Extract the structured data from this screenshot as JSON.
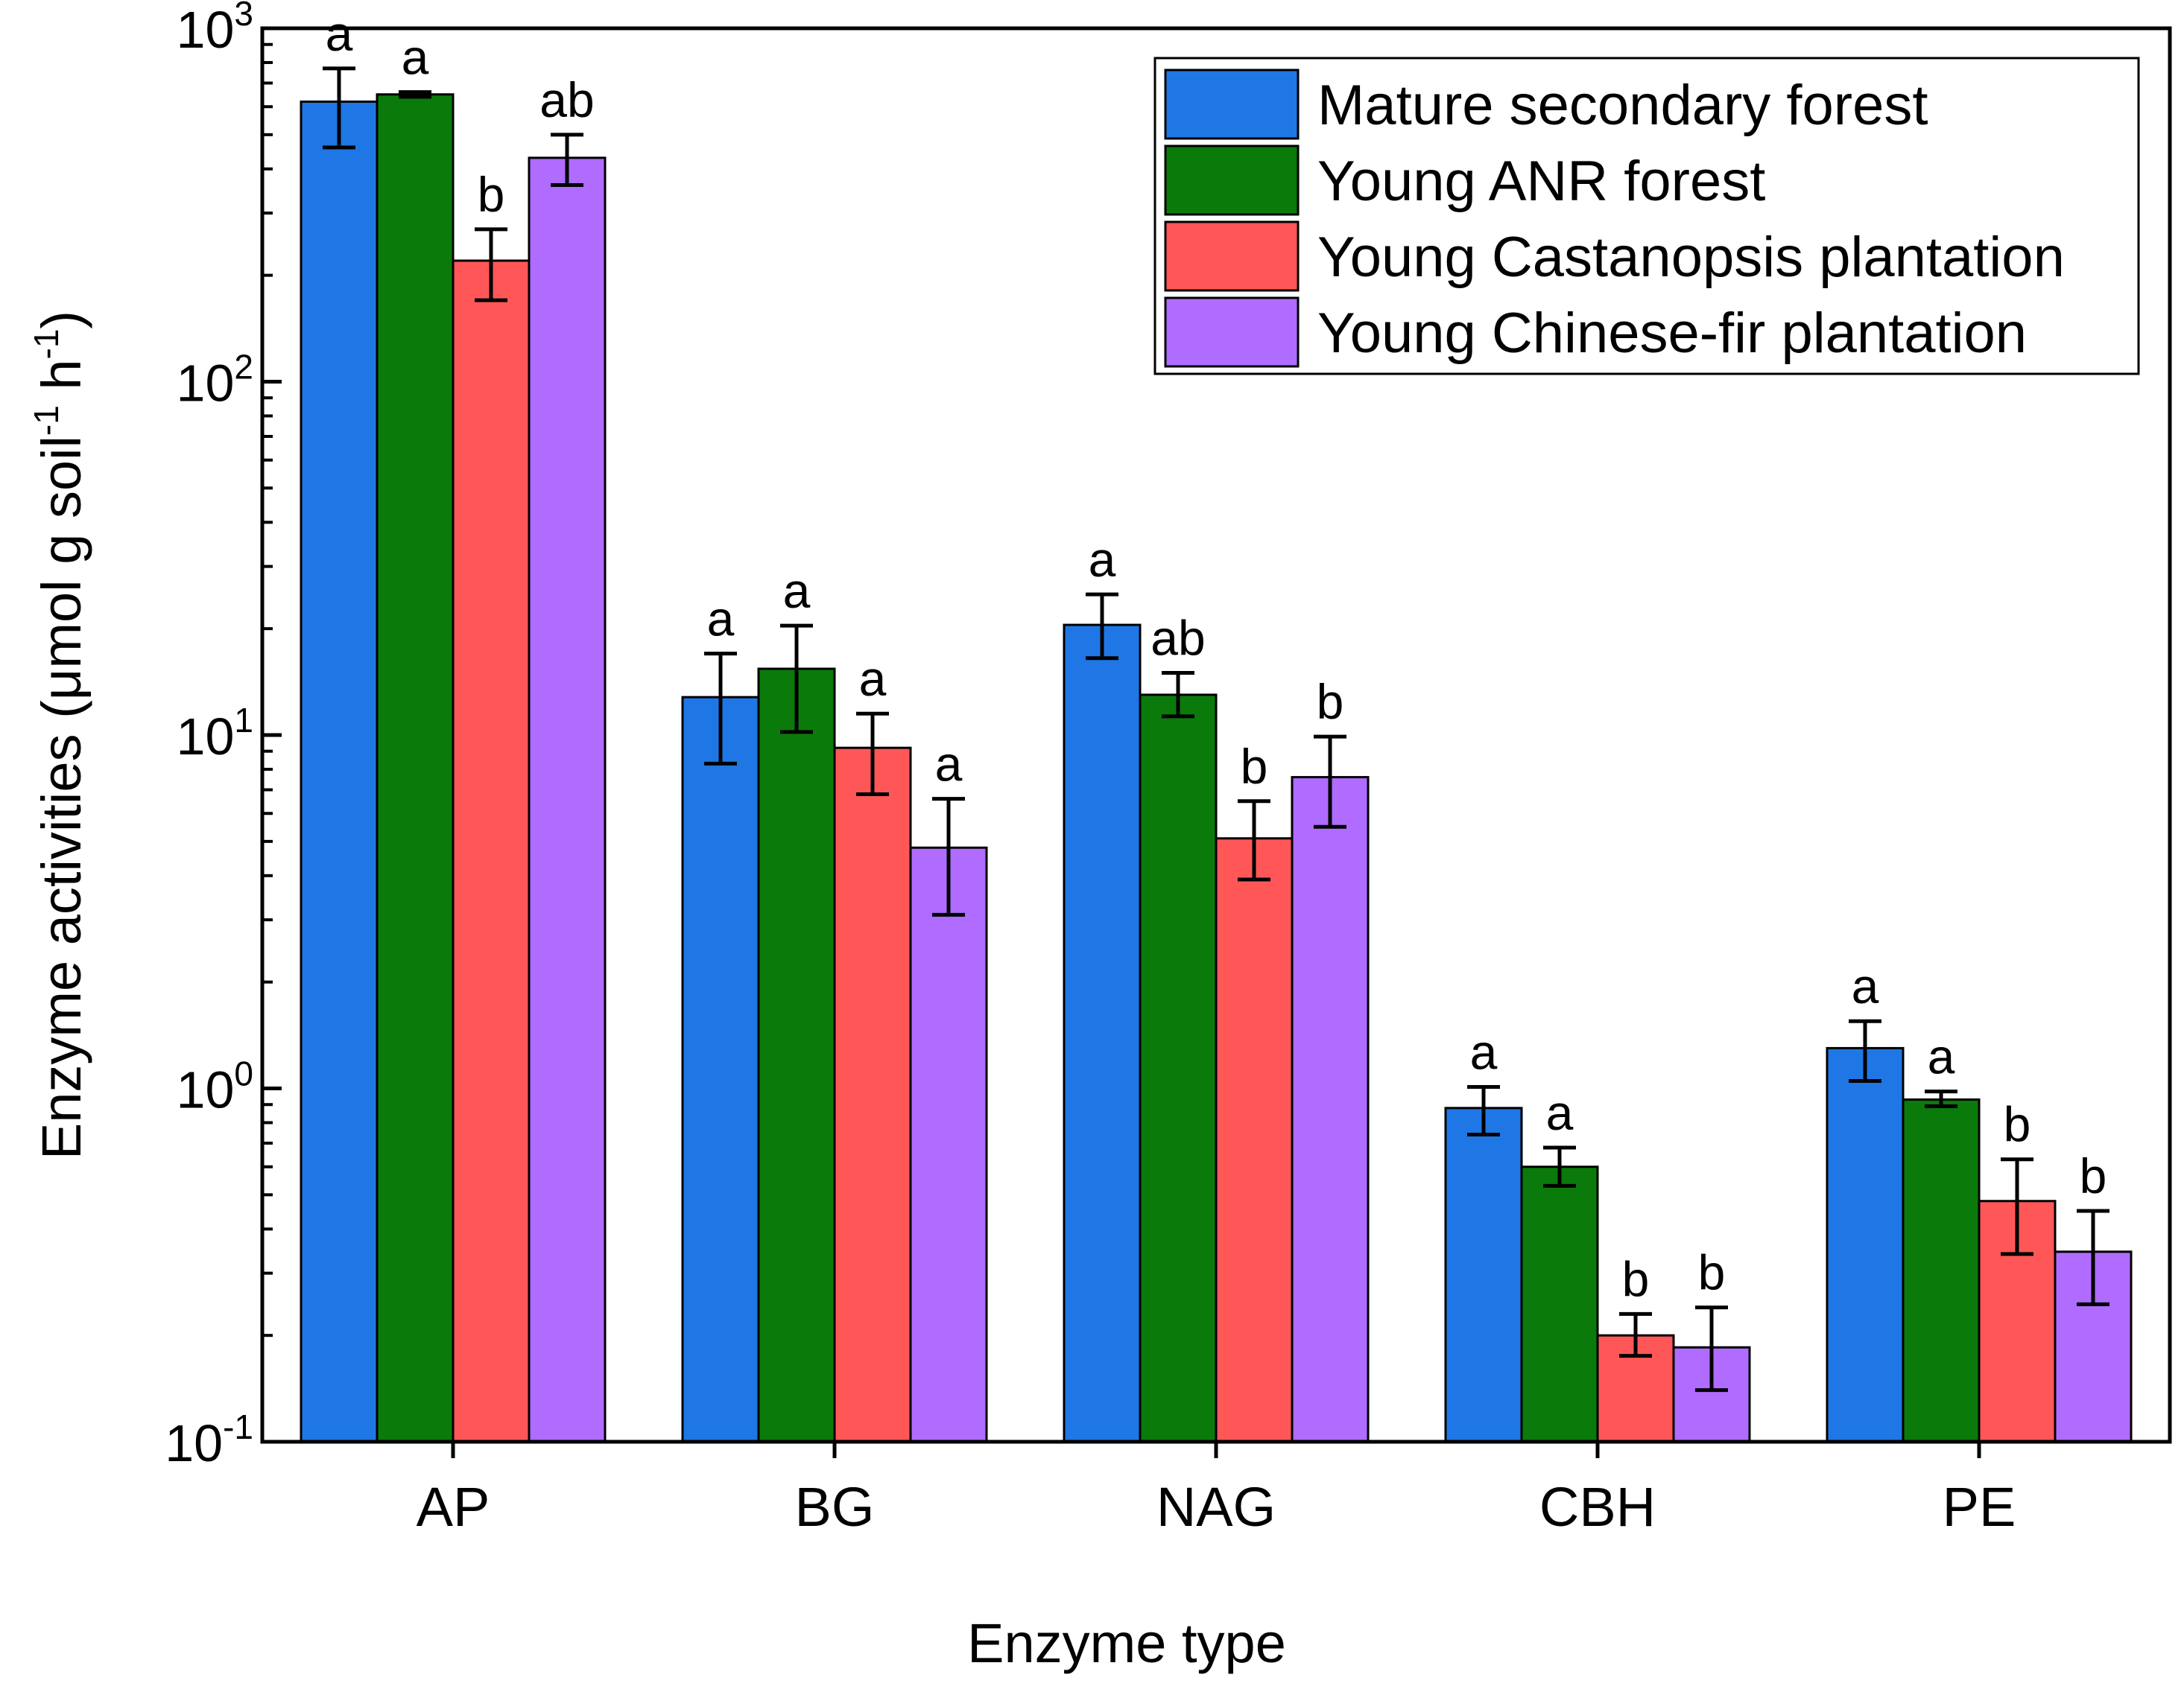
{
  "chart_data": {
    "type": "bar",
    "yscale": "log",
    "title": "",
    "xlabel": "Enzyme type",
    "ylabel": {
      "main": "Enzyme activities (μmol g soil",
      "sup1": "-1",
      "mid": " h",
      "sup2": "-1",
      "end": ")"
    },
    "ylim": [
      0.1,
      1000
    ],
    "yticks": [
      {
        "base": "10",
        "exp": "-1",
        "value": 0.1
      },
      {
        "base": "10",
        "exp": "0",
        "value": 1
      },
      {
        "base": "10",
        "exp": "1",
        "value": 10
      },
      {
        "base": "10",
        "exp": "2",
        "value": 100
      },
      {
        "base": "10",
        "exp": "3",
        "value": 1000
      }
    ],
    "categories": [
      "AP",
      "BG",
      "NAG",
      "CBH",
      "PE"
    ],
    "legend_position": "top-right",
    "series": [
      {
        "name": "Mature secondary forest",
        "color": "#1f77e6",
        "values": [
          620,
          12.8,
          20.5,
          0.88,
          1.3
        ],
        "err_low": [
          460,
          8.3,
          16.5,
          0.74,
          1.05
        ],
        "err_high": [
          770,
          17.0,
          25.0,
          1.01,
          1.55
        ],
        "letters": [
          "a",
          "a",
          "a",
          "a",
          "a"
        ]
      },
      {
        "name": "Young ANR forest",
        "color": "#0a7a0a",
        "values": [
          650,
          15.4,
          13.0,
          0.6,
          0.93
        ],
        "err_low": [
          640,
          10.2,
          11.3,
          0.53,
          0.89
        ],
        "err_high": [
          660,
          20.4,
          15.0,
          0.68,
          0.98
        ],
        "letters": [
          "a",
          "a",
          "ab",
          "a",
          "a"
        ]
      },
      {
        "name": "Young Castanopsis plantation",
        "color": "#ff5757",
        "values": [
          220,
          9.2,
          5.1,
          0.2,
          0.48
        ],
        "err_low": [
          170,
          6.8,
          3.9,
          0.175,
          0.34
        ],
        "err_high": [
          270,
          11.5,
          6.5,
          0.23,
          0.63
        ],
        "letters": [
          "b",
          "a",
          "b",
          "b",
          "b"
        ]
      },
      {
        "name": "Young Chinese-fir plantation",
        "color": "#b06cff",
        "values": [
          430,
          4.8,
          7.6,
          0.185,
          0.345
        ],
        "err_low": [
          360,
          3.1,
          5.5,
          0.14,
          0.245
        ],
        "err_high": [
          500,
          6.6,
          9.9,
          0.24,
          0.45
        ],
        "letters": [
          "ab",
          "a",
          "b",
          "b",
          "b"
        ]
      }
    ]
  }
}
